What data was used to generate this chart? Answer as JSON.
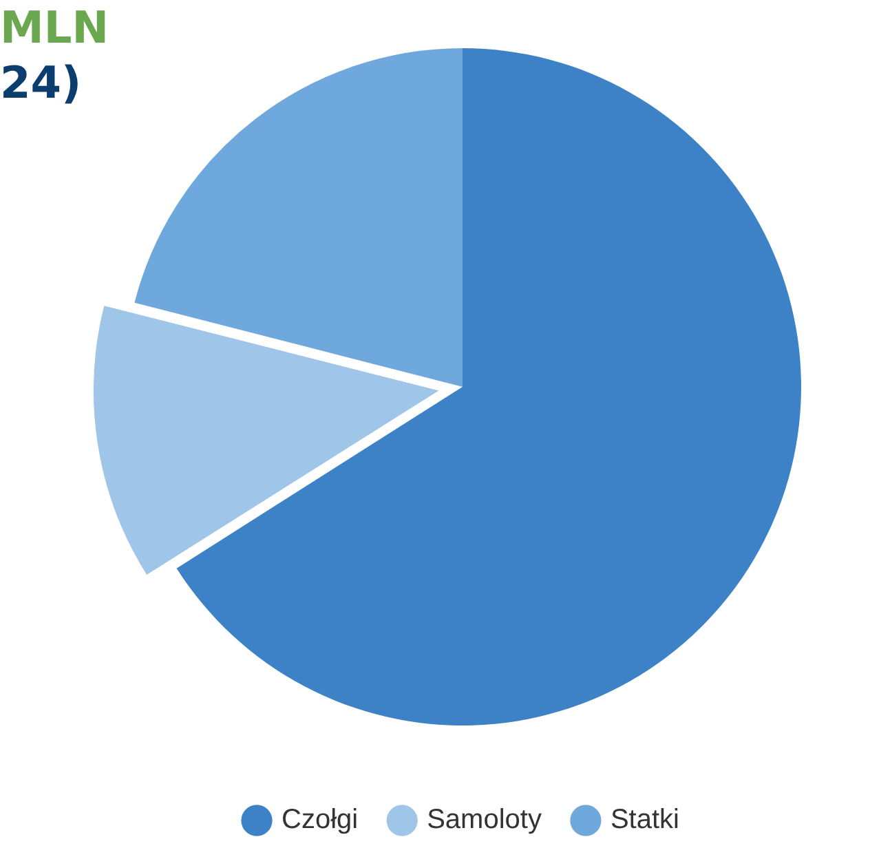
{
  "chart_data": {
    "type": "pie",
    "title": "MLN",
    "subtitle": "24)",
    "categories": [
      "Czołgi",
      "Samoloty",
      "Statki"
    ],
    "values": [
      66,
      13,
      21
    ],
    "colors": [
      "#3d82c6",
      "#9fc5e8",
      "#6fa8dc"
    ],
    "legend": "bottom"
  }
}
